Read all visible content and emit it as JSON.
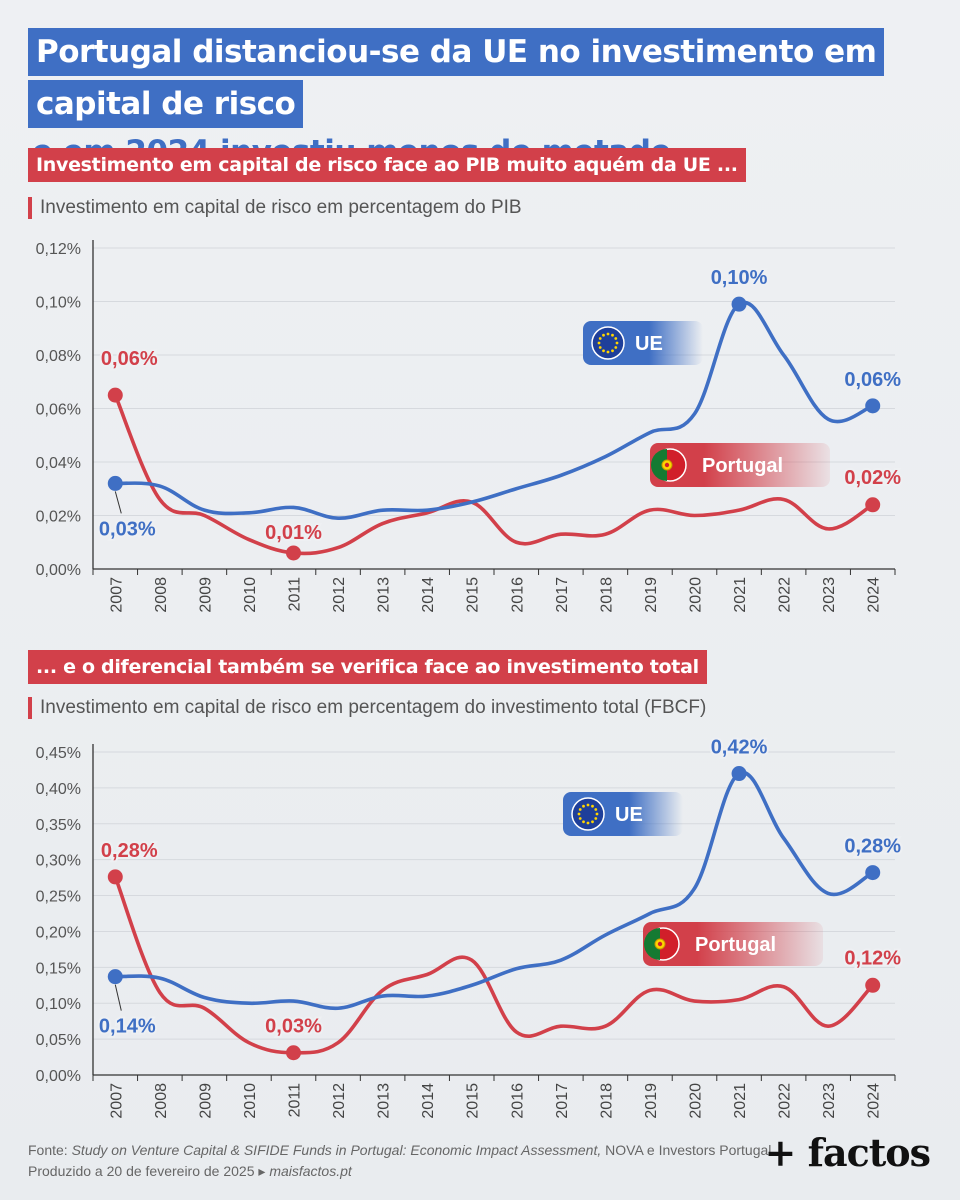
{
  "title": {
    "line1_highlight": "Portugal distanciou-se da UE no investimento em",
    "line2_highlight": "capital de risco",
    "line2_plain": "e em 2024 investiu menos de metade"
  },
  "colors": {
    "eu": "#3f6fc4",
    "pt": "#d2404a"
  },
  "charts": [
    {
      "section_tag": "Investimento em capital de risco face ao PIB muito aquém da UE ...",
      "subtitle": "Investimento em capital de risco em percentagem do PIB",
      "legend_eu": "UE",
      "legend_pt": "Portugal",
      "icons": {
        "eu": "eu-flag-icon",
        "pt": "portugal-flag-icon"
      }
    },
    {
      "section_tag": "... e o diferencial também se verifica face ao investimento total",
      "subtitle": "Investimento em capital de risco em percentagem do investimento total (FBCF)",
      "legend_eu": "UE",
      "legend_pt": "Portugal",
      "icons": {
        "eu": "eu-flag-icon",
        "pt": "portugal-flag-icon"
      }
    }
  ],
  "chart_data": [
    {
      "type": "line",
      "title": "Investimento em capital de risco em percentagem do PIB",
      "x": [
        2007,
        2008,
        2009,
        2010,
        2011,
        2012,
        2013,
        2014,
        2015,
        2016,
        2017,
        2018,
        2019,
        2020,
        2021,
        2022,
        2023,
        2024
      ],
      "ylim": [
        0,
        0.12
      ],
      "yticks": [
        "0,00%",
        "0,02%",
        "0,04%",
        "0,06%",
        "0,08%",
        "0,10%",
        "0,12%"
      ],
      "series": [
        {
          "name": "UE",
          "values": [
            0.032,
            0.031,
            0.022,
            0.021,
            0.023,
            0.019,
            0.022,
            0.022,
            0.025,
            0.03,
            0.035,
            0.042,
            0.051,
            0.058,
            0.099,
            0.08,
            0.056,
            0.061
          ]
        },
        {
          "name": "Portugal",
          "values": [
            0.065,
            0.026,
            0.02,
            0.011,
            0.006,
            0.008,
            0.017,
            0.021,
            0.025,
            0.01,
            0.013,
            0.013,
            0.022,
            0.02,
            0.022,
            0.026,
            0.015,
            0.024
          ]
        }
      ],
      "labels": [
        {
          "series": "UE",
          "index": 0,
          "text": "0,03%"
        },
        {
          "series": "UE",
          "index": 14,
          "text": "0,10%"
        },
        {
          "series": "UE",
          "index": 17,
          "text": "0,06%"
        },
        {
          "series": "Portugal",
          "index": 0,
          "text": "0,06%"
        },
        {
          "series": "Portugal",
          "index": 4,
          "text": "0,01%"
        },
        {
          "series": "Portugal",
          "index": 17,
          "text": "0,02%"
        }
      ]
    },
    {
      "type": "line",
      "title": "Investimento em capital de risco em percentagem do investimento total (FBCF)",
      "x": [
        2007,
        2008,
        2009,
        2010,
        2011,
        2012,
        2013,
        2014,
        2015,
        2016,
        2017,
        2018,
        2019,
        2020,
        2021,
        2022,
        2023,
        2024
      ],
      "ylim": [
        0,
        0.45
      ],
      "yticks": [
        "0,00%",
        "0,05%",
        "0,10%",
        "0,15%",
        "0,20%",
        "0,25%",
        "0,30%",
        "0,35%",
        "0,40%",
        "0,45%"
      ],
      "series": [
        {
          "name": "UE",
          "values": [
            0.137,
            0.135,
            0.108,
            0.1,
            0.103,
            0.093,
            0.11,
            0.11,
            0.125,
            0.148,
            0.16,
            0.195,
            0.225,
            0.26,
            0.42,
            0.33,
            0.253,
            0.282
          ]
        },
        {
          "name": "Portugal",
          "values": [
            0.276,
            0.115,
            0.093,
            0.045,
            0.031,
            0.045,
            0.118,
            0.14,
            0.16,
            0.06,
            0.068,
            0.068,
            0.118,
            0.103,
            0.105,
            0.123,
            0.068,
            0.125
          ]
        }
      ],
      "labels": [
        {
          "series": "UE",
          "index": 0,
          "text": "0,14%"
        },
        {
          "series": "UE",
          "index": 14,
          "text": "0,42%"
        },
        {
          "series": "UE",
          "index": 17,
          "text": "0,28%"
        },
        {
          "series": "Portugal",
          "index": 0,
          "text": "0,28%"
        },
        {
          "series": "Portugal",
          "index": 4,
          "text": "0,03%"
        },
        {
          "series": "Portugal",
          "index": 17,
          "text": "0,12%"
        }
      ]
    }
  ],
  "footer": {
    "source_prefix": "Fonte: ",
    "source_title": "Study on Venture Capital & SIFIDE Funds in Portugal: Economic Impact Assessment,",
    "source_rest": " NOVA  e Investors Portugal",
    "produced": "Produzido a 20 de fevereiro de 2025 ▸ ",
    "site": "maisfactos.pt"
  },
  "logo": "+ factos"
}
